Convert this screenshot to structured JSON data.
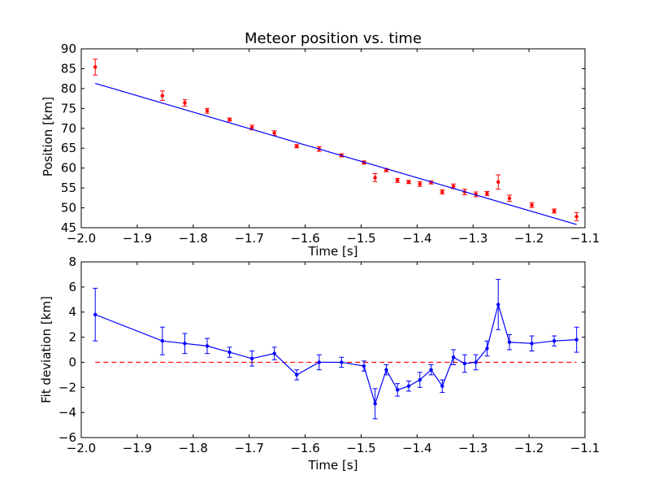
{
  "chart_data": [
    {
      "type": "scatter",
      "title": "Meteor position vs. time",
      "xlabel": "Time [s]",
      "ylabel": "Position [km]",
      "xlim": [
        -2.0,
        -1.1
      ],
      "ylim": [
        45,
        90
      ],
      "xticks": [
        -2.0,
        -1.9,
        -1.8,
        -1.7,
        -1.6,
        -1.5,
        -1.4,
        -1.3,
        -1.2,
        -1.1
      ],
      "xtick_labels": [
        "−2.0",
        "−1.9",
        "−1.8",
        "−1.7",
        "−1.6",
        "−1.5",
        "−1.4",
        "−1.3",
        "−1.2",
        "−1.1"
      ],
      "yticks": [
        45,
        50,
        55,
        60,
        65,
        70,
        75,
        80,
        85,
        90
      ],
      "ytick_labels": [
        "45",
        "50",
        "55",
        "60",
        "65",
        "70",
        "75",
        "80",
        "85",
        "90"
      ],
      "grid": false,
      "series": [
        {
          "kind": "errorbar-points",
          "color": "#ff0000",
          "x": [
            -1.975,
            -1.855,
            -1.815,
            -1.775,
            -1.735,
            -1.695,
            -1.655,
            -1.615,
            -1.575,
            -1.535,
            -1.495,
            -1.475,
            -1.455,
            -1.435,
            -1.415,
            -1.395,
            -1.375,
            -1.355,
            -1.335,
            -1.315,
            -1.295,
            -1.275,
            -1.255,
            -1.235,
            -1.195,
            -1.155,
            -1.115
          ],
          "y": [
            85.4,
            78.2,
            76.4,
            74.4,
            72.2,
            70.2,
            68.8,
            65.5,
            64.8,
            63.2,
            61.4,
            57.6,
            59.5,
            56.9,
            56.5,
            56.0,
            56.4,
            54.0,
            55.4,
            54.0,
            53.4,
            53.6,
            56.5,
            52.4,
            50.7,
            49.2,
            47.8
          ],
          "yerr": [
            2.0,
            1.2,
            0.8,
            0.6,
            0.4,
            0.6,
            0.6,
            0.4,
            0.6,
            0.4,
            0.4,
            1.0,
            0.4,
            0.5,
            0.4,
            0.6,
            0.4,
            0.5,
            0.6,
            0.7,
            0.6,
            0.5,
            1.8,
            0.8,
            0.6,
            0.5,
            1.0
          ]
        },
        {
          "kind": "fit-line",
          "color": "#0000ff",
          "x": [
            -1.975,
            -1.115
          ],
          "y": [
            81.3,
            45.8
          ]
        }
      ]
    },
    {
      "type": "line",
      "title": "",
      "xlabel": "Time [s]",
      "ylabel": "Fit deviation [km]",
      "xlim": [
        -2.0,
        -1.1
      ],
      "ylim": [
        -6,
        8
      ],
      "xticks": [
        -2.0,
        -1.9,
        -1.8,
        -1.7,
        -1.6,
        -1.5,
        -1.4,
        -1.3,
        -1.2,
        -1.1
      ],
      "xtick_labels": [
        "−2.0",
        "−1.9",
        "−1.8",
        "−1.7",
        "−1.6",
        "−1.5",
        "−1.4",
        "−1.3",
        "−1.2",
        "−1.1"
      ],
      "yticks": [
        -6,
        -4,
        -2,
        0,
        2,
        4,
        6,
        8
      ],
      "ytick_labels": [
        "−6",
        "−4",
        "−2",
        "0",
        "2",
        "4",
        "6",
        "8"
      ],
      "grid": false,
      "reference_line": {
        "y": 0,
        "color": "#ff0000",
        "style": "dashed"
      },
      "series": [
        {
          "kind": "errorbar-line",
          "color": "#0000ff",
          "x": [
            -1.975,
            -1.855,
            -1.815,
            -1.775,
            -1.735,
            -1.695,
            -1.655,
            -1.615,
            -1.575,
            -1.535,
            -1.495,
            -1.475,
            -1.455,
            -1.435,
            -1.415,
            -1.395,
            -1.375,
            -1.355,
            -1.335,
            -1.315,
            -1.295,
            -1.275,
            -1.255,
            -1.235,
            -1.195,
            -1.155,
            -1.115
          ],
          "y": [
            3.8,
            1.7,
            1.5,
            1.3,
            0.8,
            0.3,
            0.7,
            -1.0,
            0.0,
            0.0,
            -0.3,
            -3.3,
            -0.6,
            -2.2,
            -1.9,
            -1.4,
            -0.6,
            -1.9,
            0.4,
            -0.1,
            0.0,
            1.1,
            4.6,
            1.6,
            1.5,
            1.7,
            1.8
          ],
          "yerr": [
            2.1,
            1.1,
            0.8,
            0.6,
            0.4,
            0.6,
            0.5,
            0.4,
            0.6,
            0.4,
            0.4,
            1.2,
            0.4,
            0.5,
            0.4,
            0.6,
            0.4,
            0.5,
            0.6,
            0.7,
            0.6,
            0.6,
            2.0,
            0.6,
            0.6,
            0.4,
            1.0
          ]
        }
      ]
    }
  ]
}
